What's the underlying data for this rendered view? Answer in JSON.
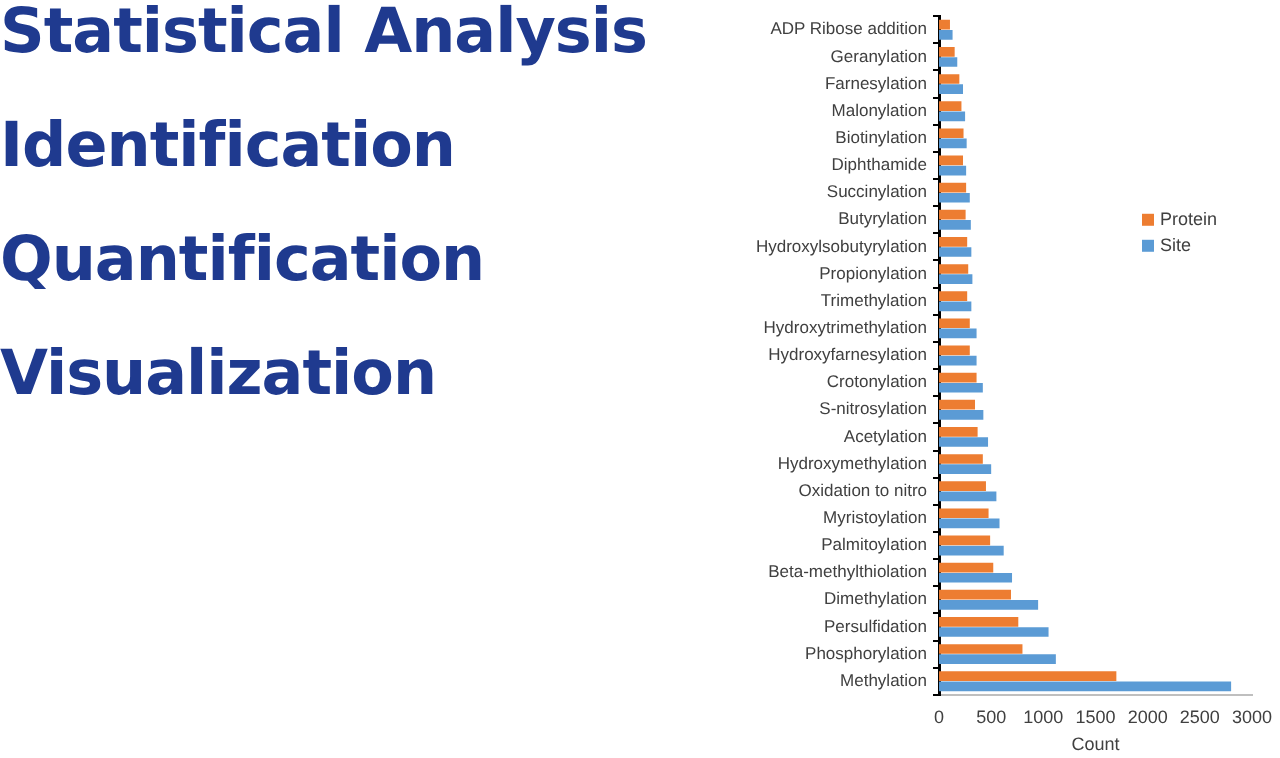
{
  "chart_data": {
    "type": "bar",
    "orientation": "horizontal",
    "xlabel": "Count",
    "annotations": [
      "Statistical Analysis",
      "Identification",
      "Quantification",
      "Visualization"
    ],
    "categories": [
      "ADP Ribose addition",
      "Geranylation",
      "Farnesylation",
      "Malonylation",
      "Biotinylation",
      "Diphthamide",
      "Succinylation",
      "Butyrylation",
      "Hydroxylsobutyrylation",
      "Propionylation",
      "Trimethylation",
      "Hydroxytrimethylation",
      "Hydroxyfarnesylation",
      "Crotonylation",
      "S-nitrosylation",
      "Acetylation",
      "Hydroxymethylation",
      "Oxidation to nitro",
      "Myristoylation",
      "Palmitoylation",
      "Beta-methylthiolation",
      "Dimethylation",
      "Persulfidation",
      "Phosphorylation",
      "Methylation"
    ],
    "series": [
      {
        "name": "Protein",
        "color": "#ed7d31",
        "values": [
          105,
          150,
          195,
          215,
          235,
          230,
          260,
          255,
          270,
          280,
          270,
          295,
          295,
          360,
          345,
          370,
          420,
          450,
          475,
          490,
          520,
          690,
          760,
          800,
          1700
        ]
      },
      {
        "name": "Site",
        "color": "#5b9bd5",
        "values": [
          130,
          175,
          230,
          250,
          265,
          260,
          295,
          305,
          310,
          320,
          310,
          360,
          360,
          420,
          425,
          470,
          500,
          550,
          580,
          620,
          700,
          950,
          1050,
          1120,
          2800
        ]
      }
    ],
    "xlim": [
      0,
      3000
    ],
    "xticks": [
      0,
      500,
      1000,
      1500,
      2000,
      2500,
      3000
    ],
    "grid": false,
    "legend": "right"
  }
}
